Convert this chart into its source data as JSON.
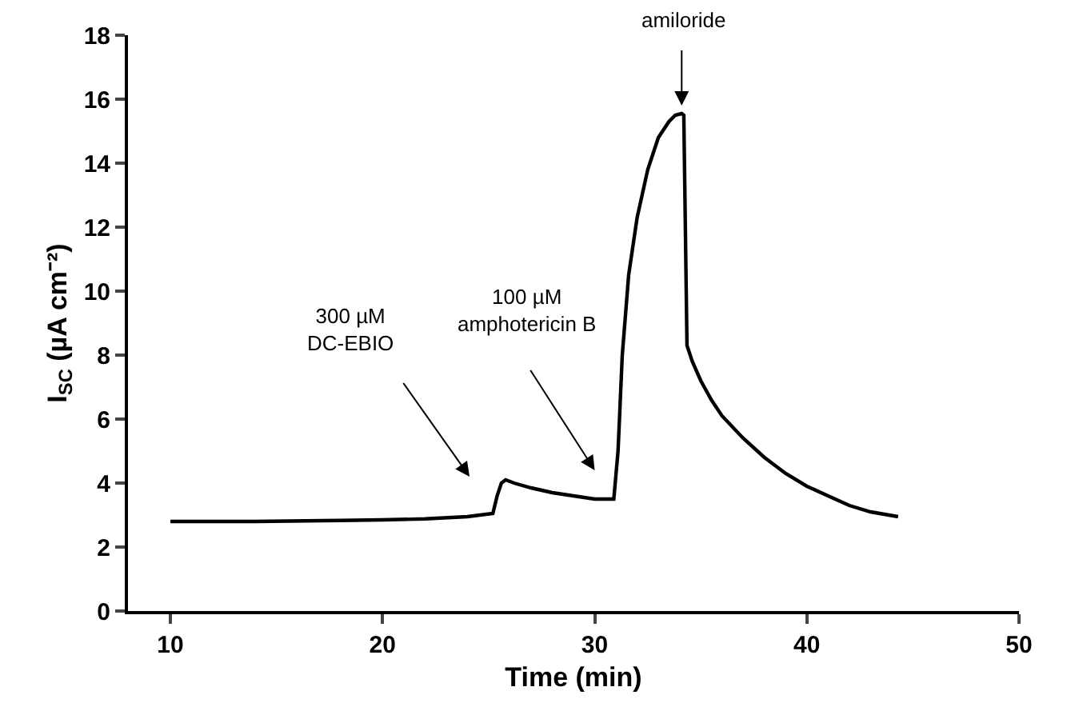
{
  "chart_data": {
    "type": "line",
    "xlabel": "Time (min)",
    "ylabel": "I$_{SC}$ (µA cm⁻²)",
    "x": [
      10,
      14,
      18,
      20,
      22,
      24,
      25.2,
      25.4,
      25.6,
      25.8,
      26.2,
      27,
      28,
      29,
      30,
      30.9,
      31.1,
      31.3,
      31.6,
      32,
      32.5,
      33,
      33.5,
      33.8,
      34.1,
      34.2,
      34.35,
      34.6,
      35,
      35.5,
      36,
      37,
      38,
      39,
      40,
      41,
      42,
      43,
      44.3
    ],
    "values": [
      2.8,
      2.8,
      2.83,
      2.85,
      2.88,
      2.95,
      3.05,
      3.6,
      4.0,
      4.1,
      4.0,
      3.85,
      3.7,
      3.6,
      3.5,
      3.5,
      5,
      8,
      10.5,
      12.3,
      13.8,
      14.8,
      15.3,
      15.5,
      15.55,
      15.5,
      8.3,
      7.8,
      7.2,
      6.6,
      6.1,
      5.4,
      4.8,
      4.3,
      3.9,
      3.6,
      3.3,
      3.1,
      2.95
    ],
    "color": "#000000",
    "xlim": [
      8,
      50
    ],
    "xticks": [
      10,
      20,
      30,
      40,
      50
    ],
    "ylim": [
      0,
      18
    ],
    "yticks": [
      0,
      2,
      4,
      6,
      8,
      10,
      12,
      14,
      16,
      18
    ],
    "grid": false,
    "legend": false,
    "marker": "none",
    "line_style": "solid",
    "annotations": [
      "300 µM\nDC-EBIO",
      "100 µM\namphotericin B",
      "amiloride"
    ]
  }
}
